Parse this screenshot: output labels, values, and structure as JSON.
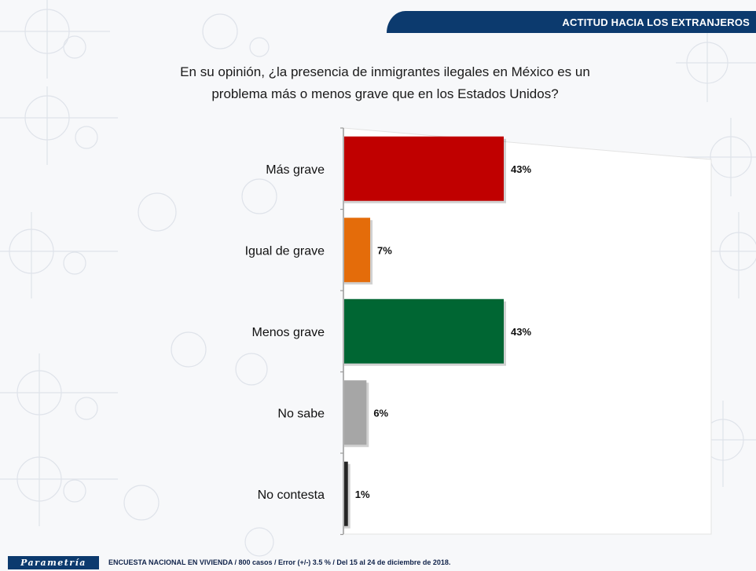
{
  "header": {
    "section_title": "ACTITUD HACIA LOS EXTRANJEROS"
  },
  "chart_data": {
    "type": "bar",
    "orientation": "horizontal",
    "title": "En su opinión, ¿la presencia de inmigrantes ilegales en México es un problema más o menos grave que en los Estados Unidos?",
    "title_lines": [
      "En su opinión, ¿la presencia de inmigrantes ilegales en México es un",
      "problema más o menos grave que en los Estados Unidos?"
    ],
    "categories": [
      "Más grave",
      "Igual de grave",
      "Menos grave",
      "No sabe",
      "No contesta"
    ],
    "values": [
      43,
      7,
      43,
      6,
      1
    ],
    "value_labels": [
      "43%",
      "7%",
      "43%",
      "6%",
      "1%"
    ],
    "bar_colors": [
      "#c00000",
      "#e46c0a",
      "#006633",
      "#a6a6a6",
      "#262626"
    ],
    "xlim": [
      0,
      100
    ],
    "grid": false,
    "legend": "none"
  },
  "footer": {
    "logo_text": "Parametría",
    "note": "ENCUESTA NACIONAL EN VIVIENDA / 800 casos / Error (+/-) 3.5 % / Del 15 al 24 de diciembre de 2018."
  },
  "colors": {
    "brand_blue": "#0c3a6e"
  }
}
